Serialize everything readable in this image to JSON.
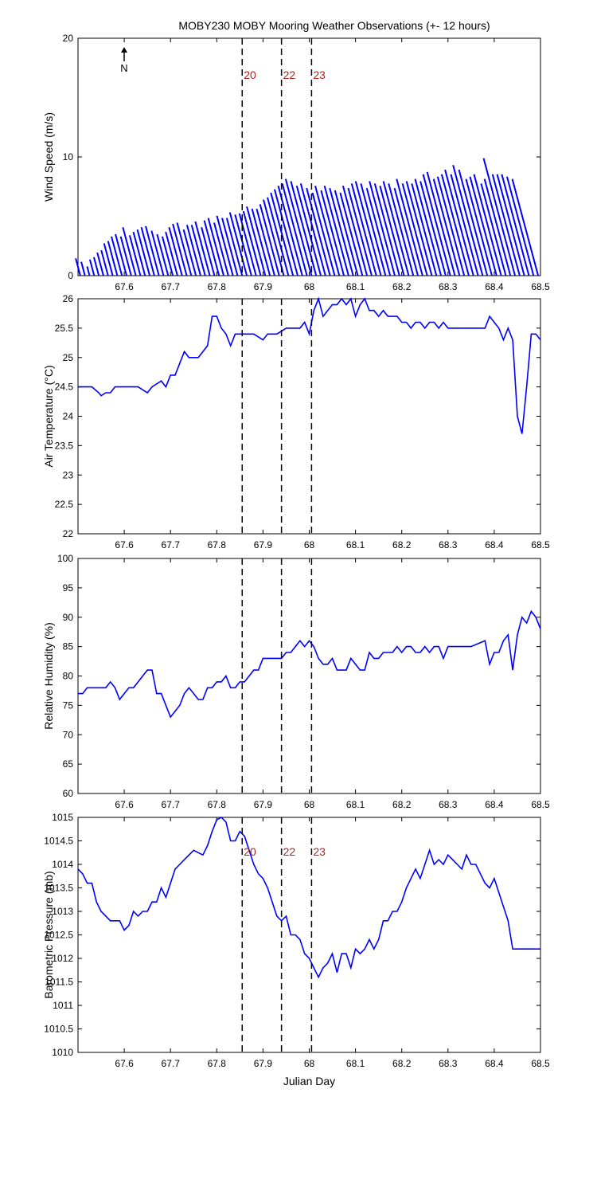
{
  "title": "MOBY230 MOBY Mooring Weather Observations (+- 12 hours)",
  "xlabel": "Julian Day",
  "north_label": "N",
  "colors": {
    "line": "#0000ff",
    "marker_text": "#b22222",
    "axes": "#000000"
  },
  "x_ticks": [
    "67.6",
    "67.7",
    "67.8",
    "67.9",
    "68",
    "68.1",
    "68.2",
    "68.3",
    "68.4",
    "68.5"
  ],
  "chart_data": [
    {
      "type": "line",
      "panel": "wind",
      "ylabel": "Wind Speed (m/s)",
      "xlim": [
        67.5,
        68.5
      ],
      "ylim": [
        0,
        20
      ],
      "y_ticks": [
        "0",
        "10",
        "20"
      ],
      "markers": [
        {
          "x": 67.855,
          "label": "20"
        },
        {
          "x": 67.94,
          "label": "22"
        },
        {
          "x": 68.005,
          "label": "23"
        }
      ],
      "series": [
        {
          "style": "wind-sticks",
          "x": [
            67.505,
            67.515,
            67.525,
            67.535,
            67.545,
            67.555,
            67.565,
            67.575,
            67.585,
            67.595,
            67.605,
            67.615,
            67.625,
            67.635,
            67.645,
            67.655,
            67.665,
            67.675,
            67.685,
            67.695,
            67.705,
            67.715,
            67.725,
            67.735,
            67.745,
            67.755,
            67.765,
            67.775,
            67.785,
            67.795,
            67.805,
            67.815,
            67.825,
            67.835,
            67.845,
            67.855,
            67.865,
            67.875,
            67.885,
            67.895,
            67.905,
            67.915,
            67.925,
            67.935,
            67.945,
            67.955,
            67.965,
            67.975,
            67.985,
            67.995,
            68.005,
            68.015,
            68.025,
            68.035,
            68.045,
            68.055,
            68.065,
            68.075,
            68.085,
            68.095,
            68.105,
            68.115,
            68.125,
            68.135,
            68.145,
            68.155,
            68.165,
            68.175,
            68.185,
            68.195,
            68.205,
            68.215,
            68.225,
            68.235,
            68.245,
            68.255,
            68.265,
            68.275,
            68.285,
            68.295,
            68.305,
            68.315,
            68.325,
            68.335,
            68.345,
            68.355,
            68.365,
            68.375,
            68.385,
            68.395,
            68.405,
            68.415,
            68.425,
            68.435,
            68.445,
            68.455,
            68.465,
            68.475,
            68.485,
            68.495
          ],
          "speed": [
            1.5,
            1.2,
            0.8,
            1.4,
            1.6,
            2.0,
            2.2,
            2.8,
            3.0,
            3.4,
            3.6,
            3.4,
            4.2,
            3.5,
            3.8,
            4.0,
            4.2,
            4.3,
            3.9,
            3.6,
            3.4,
            3.8,
            4.2,
            4.5,
            4.6,
            4.0,
            4.4,
            4.4,
            4.7,
            4.2,
            4.8,
            5.0,
            4.6,
            5.2,
            5.0,
            5.0,
            5.5,
            5.3,
            5.4,
            5.6,
            6.0,
            5.8,
            5.8,
            6.2,
            6.6,
            6.8,
            7.2,
            7.5,
            7.8,
            8.0,
            8.4,
            8.2,
            7.8,
            8.0,
            7.6,
            7.2,
            7.8,
            7.4,
            7.8,
            7.6,
            7.4,
            7.2,
            7.8,
            7.6,
            8.0,
            8.2,
            8.0,
            7.6,
            8.2,
            8.0,
            7.8,
            8.2,
            8.0,
            7.6,
            8.4,
            8.0,
            8.2,
            8.0,
            8.4,
            8.2,
            8.8,
            9.0,
            8.4,
            8.6,
            8.8,
            9.2,
            8.8,
            9.6,
            9.2,
            8.4,
            8.6,
            8.8,
            8.0,
            8.4,
            10.2,
            8.8,
            8.8,
            8.8,
            8.6,
            8.4
          ],
          "direction_deg": [
            165,
            165,
            165,
            165,
            165,
            165,
            165,
            165,
            165,
            165,
            165,
            165,
            165,
            165,
            165,
            165,
            165,
            165,
            165,
            165,
            165,
            165,
            165,
            165,
            165,
            165,
            165,
            165,
            165,
            165,
            165,
            165,
            165,
            165,
            165,
            165,
            165,
            165,
            165,
            165,
            165,
            165,
            165,
            165,
            165,
            165,
            165,
            165,
            165,
            165,
            165,
            165,
            165,
            165,
            165,
            165,
            165,
            165,
            165,
            165,
            165,
            165,
            165,
            165,
            165,
            165,
            165,
            165,
            165,
            165,
            165,
            165,
            165,
            165,
            165,
            165,
            165,
            165,
            165,
            165,
            165,
            165,
            165,
            165,
            165,
            165,
            165,
            165,
            165,
            165,
            165,
            165,
            165,
            165,
            165,
            165,
            165,
            165,
            165,
            165
          ]
        }
      ]
    },
    {
      "type": "line",
      "panel": "air-temperature",
      "ylabel": "Air Temperature (°C)",
      "xlim": [
        67.5,
        68.5
      ],
      "ylim": [
        22,
        26
      ],
      "y_ticks": [
        "22",
        "22.5",
        "23",
        "23.5",
        "24",
        "24.5",
        "25",
        "25.5",
        "26"
      ],
      "markers": [
        {
          "x": 67.855
        },
        {
          "x": 67.94
        },
        {
          "x": 68.005
        }
      ],
      "series": [
        {
          "x": [
            67.5,
            67.53,
            67.545,
            67.55,
            67.56,
            67.57,
            67.58,
            67.6,
            67.63,
            67.65,
            67.66,
            67.68,
            67.69,
            67.7,
            67.71,
            67.72,
            67.73,
            67.74,
            67.76,
            67.77,
            67.78,
            67.79,
            67.8,
            67.81,
            67.82,
            67.83,
            67.84,
            67.86,
            67.87,
            67.88,
            67.9,
            67.91,
            67.93,
            67.95,
            67.96,
            67.97,
            67.98,
            67.99,
            68.0,
            68.01,
            68.02,
            68.03,
            68.05,
            68.06,
            68.07,
            68.08,
            68.09,
            68.1,
            68.11,
            68.12,
            68.13,
            68.14,
            68.15,
            68.16,
            68.17,
            68.18,
            68.19,
            68.2,
            68.21,
            68.22,
            68.23,
            68.24,
            68.25,
            68.26,
            68.27,
            68.28,
            68.29,
            68.3,
            68.32,
            68.35,
            68.38,
            68.39,
            68.4,
            68.41,
            68.42,
            68.43,
            68.44,
            68.45,
            68.46,
            68.47,
            68.48,
            68.49,
            68.5
          ],
          "y": [
            24.5,
            24.5,
            24.4,
            24.35,
            24.4,
            24.4,
            24.5,
            24.5,
            24.5,
            24.4,
            24.5,
            24.6,
            24.5,
            24.7,
            24.7,
            24.9,
            25.1,
            25.0,
            25.0,
            25.1,
            25.2,
            25.7,
            25.7,
            25.5,
            25.4,
            25.2,
            25.4,
            25.4,
            25.4,
            25.4,
            25.3,
            25.4,
            25.4,
            25.5,
            25.5,
            25.5,
            25.5,
            25.6,
            25.4,
            25.8,
            26.0,
            25.7,
            25.9,
            25.9,
            26.0,
            25.9,
            26.0,
            25.7,
            25.9,
            26.0,
            25.8,
            25.8,
            25.7,
            25.8,
            25.7,
            25.7,
            25.7,
            25.6,
            25.6,
            25.5,
            25.6,
            25.6,
            25.5,
            25.6,
            25.6,
            25.5,
            25.6,
            25.5,
            25.5,
            25.5,
            25.5,
            25.7,
            25.6,
            25.5,
            25.3,
            25.5,
            25.3,
            24.0,
            23.7,
            24.5,
            25.4,
            25.4,
            25.3
          ]
        }
      ]
    },
    {
      "type": "line",
      "panel": "relative-humidity",
      "ylabel": "Relative Humidity (%)",
      "xlim": [
        67.5,
        68.5
      ],
      "ylim": [
        60,
        100
      ],
      "y_ticks": [
        "60",
        "65",
        "70",
        "75",
        "80",
        "85",
        "90",
        "95",
        "100"
      ],
      "markers": [
        {
          "x": 67.855
        },
        {
          "x": 67.94
        },
        {
          "x": 68.005
        }
      ],
      "series": [
        {
          "x": [
            67.5,
            67.51,
            67.52,
            67.54,
            67.56,
            67.57,
            67.58,
            67.59,
            67.6,
            67.61,
            67.62,
            67.64,
            67.65,
            67.66,
            67.67,
            67.68,
            67.69,
            67.7,
            67.71,
            67.72,
            67.73,
            67.74,
            67.75,
            67.76,
            67.77,
            67.78,
            67.79,
            67.8,
            67.81,
            67.82,
            67.83,
            67.84,
            67.85,
            67.86,
            67.87,
            67.88,
            67.89,
            67.9,
            67.91,
            67.92,
            67.93,
            67.94,
            67.95,
            67.96,
            67.97,
            67.98,
            67.99,
            68.0,
            68.01,
            68.02,
            68.03,
            68.04,
            68.05,
            68.06,
            68.07,
            68.08,
            68.09,
            68.1,
            68.11,
            68.12,
            68.13,
            68.14,
            68.15,
            68.16,
            68.17,
            68.18,
            68.19,
            68.2,
            68.21,
            68.22,
            68.23,
            68.24,
            68.25,
            68.26,
            68.27,
            68.28,
            68.29,
            68.3,
            68.32,
            68.35,
            68.38,
            68.39,
            68.4,
            68.41,
            68.42,
            68.43,
            68.44,
            68.45,
            68.46,
            68.47,
            68.48,
            68.49,
            68.5
          ],
          "y": [
            77,
            77,
            78,
            78,
            78,
            79,
            78,
            76,
            77,
            78,
            78,
            80,
            81,
            81,
            77,
            77,
            75,
            73,
            74,
            75,
            77,
            78,
            77,
            76,
            76,
            78,
            78,
            79,
            79,
            80,
            78,
            78,
            79,
            79,
            80,
            81,
            81,
            83,
            83,
            83,
            83,
            83,
            84,
            84,
            85,
            86,
            85,
            86,
            85,
            83,
            82,
            82,
            83,
            81,
            81,
            81,
            83,
            82,
            81,
            81,
            84,
            83,
            83,
            84,
            84,
            84,
            85,
            84,
            85,
            85,
            84,
            84,
            85,
            84,
            85,
            85,
            83,
            85,
            85,
            85,
            86,
            82,
            84,
            84,
            86,
            87,
            81,
            87,
            90,
            89,
            91,
            90,
            88
          ]
        }
      ]
    },
    {
      "type": "line",
      "panel": "barometric-pressure",
      "ylabel": "Barometric Pressure (mb)",
      "xlim": [
        67.5,
        68.5
      ],
      "ylim": [
        1010,
        1015
      ],
      "y_ticks": [
        "1010",
        "1010.5",
        "1011",
        "1011.5",
        "1012",
        "1012.5",
        "1013",
        "1013.5",
        "1014",
        "1014.5",
        "1015"
      ],
      "markers": [
        {
          "x": 67.855,
          "label": "20"
        },
        {
          "x": 67.94,
          "label": "22"
        },
        {
          "x": 68.005,
          "label": "23"
        }
      ],
      "series": [
        {
          "x": [
            67.5,
            67.51,
            67.52,
            67.53,
            67.54,
            67.55,
            67.56,
            67.57,
            67.58,
            67.59,
            67.6,
            67.61,
            67.62,
            67.63,
            67.64,
            67.65,
            67.66,
            67.67,
            67.68,
            67.69,
            67.7,
            67.71,
            67.72,
            67.73,
            67.75,
            67.77,
            67.78,
            67.79,
            67.8,
            67.81,
            67.82,
            67.83,
            67.84,
            67.85,
            67.86,
            67.87,
            67.88,
            67.89,
            67.9,
            67.91,
            67.92,
            67.93,
            67.94,
            67.95,
            67.96,
            67.97,
            67.98,
            67.99,
            68.0,
            68.01,
            68.02,
            68.03,
            68.04,
            68.05,
            68.06,
            68.07,
            68.08,
            68.09,
            68.1,
            68.11,
            68.12,
            68.13,
            68.14,
            68.15,
            68.16,
            68.17,
            68.18,
            68.19,
            68.2,
            68.21,
            68.22,
            68.23,
            68.24,
            68.25,
            68.26,
            68.27,
            68.28,
            68.29,
            68.3,
            68.31,
            68.32,
            68.33,
            68.34,
            68.35,
            68.36,
            68.37,
            68.38,
            68.39,
            68.4,
            68.41,
            68.42,
            68.43,
            68.44,
            68.45,
            68.46,
            68.47,
            68.48,
            68.49,
            68.5
          ],
          "y": [
            1013.9,
            1013.8,
            1013.6,
            1013.6,
            1013.2,
            1013.0,
            1012.9,
            1012.8,
            1012.8,
            1012.8,
            1012.6,
            1012.7,
            1013.0,
            1012.9,
            1013.0,
            1013.0,
            1013.2,
            1013.2,
            1013.5,
            1013.3,
            1013.6,
            1013.9,
            1014.0,
            1014.1,
            1014.3,
            1014.2,
            1014.4,
            1014.7,
            1014.95,
            1015.0,
            1014.9,
            1014.5,
            1014.5,
            1014.7,
            1014.6,
            1014.3,
            1014.0,
            1013.8,
            1013.7,
            1013.5,
            1013.2,
            1012.9,
            1012.8,
            1012.9,
            1012.5,
            1012.5,
            1012.4,
            1012.1,
            1012.0,
            1011.8,
            1011.6,
            1011.8,
            1011.9,
            1012.1,
            1011.7,
            1012.1,
            1012.1,
            1011.8,
            1012.2,
            1012.1,
            1012.2,
            1012.4,
            1012.2,
            1012.4,
            1012.8,
            1012.8,
            1013.0,
            1013.0,
            1013.2,
            1013.5,
            1013.7,
            1013.9,
            1013.7,
            1014.0,
            1014.3,
            1014.0,
            1014.1,
            1014.0,
            1014.2,
            1014.1,
            1014.0,
            1013.9,
            1014.2,
            1014.0,
            1014.0,
            1013.8,
            1013.6,
            1013.5,
            1013.7,
            1013.4,
            1013.1,
            1012.8,
            1012.2,
            1012.2,
            1012.2,
            1012.2,
            1012.2,
            1012.2,
            1012.2
          ]
        }
      ]
    }
  ]
}
